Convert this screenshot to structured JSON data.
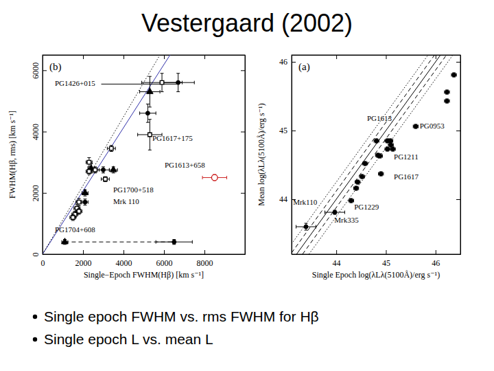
{
  "title": "Vestergaard (2002)",
  "bullets": [
    "Single epoch FWHM vs. rms FWHM for Hβ",
    "Single epoch L vs. mean L"
  ],
  "chart_data": [
    {
      "type": "scatter",
      "title": "(b)",
      "x_label": "Single−Epoch FWHM(Hβ) [km s⁻¹]",
      "y_label": "FWHM(Hβ, rms) [km s⁻¹]",
      "xlim": [
        0,
        10000
      ],
      "ylim": [
        0,
        6500
      ],
      "xticks": [
        0,
        2000,
        4000,
        6000,
        8000
      ],
      "yticks": [
        0,
        2000,
        4000,
        6000
      ],
      "series": [
        {
          "marker": "circle",
          "color": "#000000",
          "x": [
            6700,
            5200,
            3000,
            2100,
            6500
          ],
          "y": [
            5600,
            4600,
            2750,
            1700,
            400
          ],
          "xerr": [
            800,
            400,
            300,
            150,
            900
          ],
          "yerr": [
            300,
            300,
            100,
            100,
            80
          ]
        },
        {
          "marker": "triangle",
          "color": "#000000",
          "x": [
            5300,
            2400,
            3500,
            2100,
            1100
          ],
          "y": [
            5300,
            2800,
            2750,
            2000,
            400
          ],
          "xerr": [
            500,
            150,
            200,
            150,
            150
          ],
          "yerr": [
            500,
            150,
            100,
            100,
            80
          ]
        },
        {
          "marker": "open-square",
          "color": "#000000",
          "x": [
            5900,
            5300,
            3400,
            2300,
            2600,
            2300,
            3100,
            1800,
            1700,
            1800,
            1600,
            1500
          ],
          "y": [
            5600,
            3900,
            3450,
            3000,
            2750,
            2700,
            2450,
            1700,
            1500,
            1400,
            1300,
            1200
          ],
          "xerr": [
            1000,
            600,
            200,
            150,
            200,
            150,
            200,
            150,
            150,
            150,
            150,
            150
          ],
          "yerr": [
            300,
            500,
            100,
            150,
            100,
            100,
            80,
            120,
            120,
            100,
            100,
            100
          ]
        },
        {
          "marker": "open-circle",
          "color": "#cc2222",
          "x": [
            8500
          ],
          "y": [
            2500
          ],
          "xerr": [
            600
          ],
          "yerr": [
            100
          ]
        }
      ],
      "lines": [
        {
          "x": [
            0,
            6300
          ],
          "y": [
            0,
            6500
          ],
          "color": "#3333aa",
          "line_style": "solid"
        },
        {
          "x": [
            0,
            5800
          ],
          "y": [
            0,
            6500
          ],
          "color": "#000000",
          "line_style": "dotted"
        },
        {
          "x": [
            1100,
            6500
          ],
          "y": [
            400,
            400
          ],
          "color": "#000000",
          "line_style": "dashed"
        },
        {
          "x": [
            2900,
            6700
          ],
          "y": [
            5550,
            5550
          ],
          "color": "#000000",
          "line_style": "solid"
        }
      ],
      "annotations": [
        {
          "text": "PG1426+015",
          "x": 610,
          "y": 5490
        },
        {
          "text": "PG1617+175",
          "x": 5420,
          "y": 3700
        },
        {
          "text": "PG1613+658",
          "x": 6030,
          "y": 2820
        },
        {
          "text": "PG1700+518",
          "x": 3490,
          "y": 2020
        },
        {
          "text": "Mrk 110",
          "x": 3490,
          "y": 1640
        },
        {
          "text": "PG1704+608",
          "x": 610,
          "y": 720
        }
      ]
    },
    {
      "type": "scatter",
      "title": "(a)",
      "x_label": "Single Epoch log(λLλ(5100Å)/erg s⁻¹)",
      "y_label": "Mean log(λLλ(5100Å)/erg s⁻¹)",
      "xlim": [
        43.1,
        46.5
      ],
      "ylim": [
        43.2,
        46.1
      ],
      "xticks": [
        44,
        45,
        46
      ],
      "yticks": [
        44,
        45,
        46
      ],
      "series": [
        {
          "marker": "circle",
          "color": "#000000",
          "x": [
            43.39,
            43.97,
            44.3,
            44.4,
            44.43,
            44.52,
            44.9,
            44.58,
            44.81,
            44.84,
            44.88,
            45.03,
            45.1,
            45.09,
            45.14,
            45.03,
            45.6,
            46.23,
            46.23,
            46.37
          ],
          "y": [
            43.6,
            43.81,
            43.98,
            44.16,
            44.25,
            44.33,
            44.37,
            44.52,
            44.85,
            44.64,
            44.63,
            44.73,
            44.79,
            44.85,
            44.73,
            44.85,
            45.06,
            45.43,
            45.56,
            45.81
          ],
          "xerr": [
            0.2,
            0.2,
            0.05,
            0.05,
            0.05,
            0.05,
            0.05,
            0.05,
            0.05,
            0.05,
            0.05,
            0.05,
            0.05,
            0.05,
            0.05,
            0.05,
            0.05,
            0.05,
            0.05,
            0.05
          ],
          "yerr": [
            0.05,
            0.03,
            0.03,
            0.03,
            0.03,
            0.03,
            0.03,
            0.03,
            0.03,
            0.03,
            0.03,
            0.03,
            0.03,
            0.03,
            0.03,
            0.03,
            0.03,
            0.03,
            0.03,
            0.03
          ]
        }
      ],
      "lines": [
        {
          "x": [
            43.2,
            46.1
          ],
          "y": [
            43.2,
            46.1
          ],
          "color": "#000000",
          "line_style": "solid"
        },
        {
          "x": [
            43.1,
            45.98
          ],
          "y": [
            43.22,
            46.1
          ],
          "color": "#000000",
          "line_style": "dashed"
        },
        {
          "x": [
            43.32,
            46.5
          ],
          "y": [
            43.2,
            46.38
          ],
          "color": "#000000",
          "line_style": "dashed"
        },
        {
          "x": [
            43.1,
            45.85
          ],
          "y": [
            43.35,
            46.1
          ],
          "color": "#000000",
          "line_style": "dotted"
        },
        {
          "x": [
            43.45,
            46.5
          ],
          "y": [
            43.2,
            46.25
          ],
          "color": "#000000",
          "line_style": "dotted"
        }
      ],
      "annotations": [
        {
          "text": "PG1613",
          "x": 44.62,
          "y": 45.14
        },
        {
          "text": "PG0953",
          "x": 45.68,
          "y": 45.03
        },
        {
          "text": "PG1211",
          "x": 45.16,
          "y": 44.58
        },
        {
          "text": "PG1617",
          "x": 45.16,
          "y": 44.29
        },
        {
          "text": "PG1229",
          "x": 44.36,
          "y": 43.85
        },
        {
          "text": "Mrk110",
          "x": 43.13,
          "y": 43.92
        },
        {
          "text": "Mrk335",
          "x": 43.96,
          "y": 43.66
        }
      ]
    }
  ]
}
